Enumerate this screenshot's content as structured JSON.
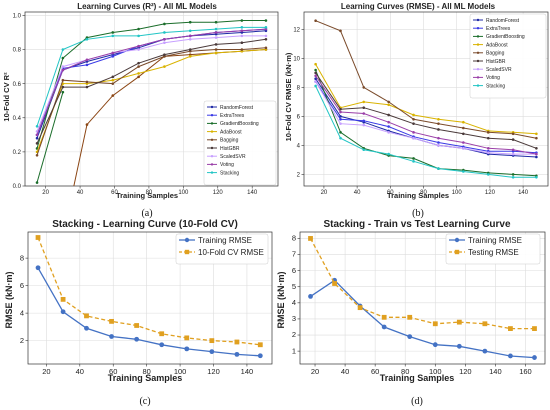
{
  "chart_data": [
    {
      "type": "line",
      "caption": "(a)",
      "title": "Learning Curves (R²) - All ML Models",
      "xlabel": "Training Samples",
      "ylabel": "10-Fold CV R²",
      "xlim": [
        8,
        155
      ],
      "ylim": [
        0.0,
        1.02
      ],
      "xticks": [
        20,
        40,
        60,
        80,
        100,
        120,
        140
      ],
      "yticks": [
        0.0,
        0.2,
        0.4,
        0.6,
        0.8,
        1.0
      ],
      "ytick_labels": [
        "0.0",
        "0.2",
        "0.4",
        "0.6",
        "0.8",
        "1.0"
      ],
      "grid": true,
      "legend_position": "lower right",
      "x": [
        15,
        30,
        44,
        59,
        74,
        89,
        104,
        119,
        134,
        148
      ],
      "series": [
        {
          "name": "RandomForest",
          "color": "#1f2aa6",
          "values": [
            0.28,
            0.68,
            0.73,
            0.77,
            0.81,
            0.86,
            0.88,
            0.89,
            0.9,
            0.91
          ]
        },
        {
          "name": "ExtraTrees",
          "color": "#3a3ae6",
          "values": [
            0.3,
            0.69,
            0.71,
            0.76,
            0.82,
            0.86,
            0.88,
            0.9,
            0.91,
            0.92
          ]
        },
        {
          "name": "GradientBoosting",
          "color": "#1a6d2a",
          "values": [
            0.22,
            0.75,
            0.87,
            0.9,
            0.92,
            0.95,
            0.96,
            0.96,
            0.97,
            0.97
          ]
        },
        {
          "name": "AdaBoost",
          "color": "#d9b300",
          "values": [
            0.2,
            0.6,
            0.6,
            0.62,
            0.66,
            0.7,
            0.76,
            0.78,
            0.79,
            0.8
          ]
        },
        {
          "name": "Bagging",
          "color": "#7a4a2a",
          "values": [
            0.18,
            0.62,
            0.61,
            0.6,
            0.7,
            0.76,
            0.79,
            0.8,
            0.8,
            0.81
          ]
        },
        {
          "name": "HistGBR",
          "color": "#4a3a3a",
          "values": [
            0.25,
            0.58,
            0.58,
            0.64,
            0.72,
            0.77,
            0.8,
            0.83,
            0.84,
            0.86
          ]
        },
        {
          "name": "ScaledSVR",
          "color": "#c7a0ff",
          "values": [
            0.32,
            0.7,
            0.74,
            0.78,
            0.8,
            0.84,
            0.86,
            0.87,
            0.88,
            0.88
          ]
        },
        {
          "name": "Voting",
          "color": "#9a3fa8",
          "values": [
            0.3,
            0.68,
            0.74,
            0.78,
            0.82,
            0.86,
            0.88,
            0.9,
            0.91,
            0.92
          ]
        },
        {
          "name": "Stacking",
          "color": "#22c5c5",
          "values": [
            0.35,
            0.8,
            0.86,
            0.88,
            0.88,
            0.9,
            0.91,
            0.92,
            0.93,
            0.93
          ]
        }
      ],
      "extra_series": [
        {
          "name": "",
          "color": "#8b4513",
          "x": [
            30,
            44,
            59,
            74,
            89,
            104,
            119,
            134,
            148
          ],
          "values": [
            -0.3,
            0.36,
            0.53,
            0.64,
            0.76,
            0.77,
            0.78,
            0.79,
            0.8
          ]
        },
        {
          "name": "",
          "color": "#1a6d2a",
          "x": [
            15,
            30
          ],
          "values": [
            0.02,
            0.55
          ]
        }
      ]
    },
    {
      "type": "line",
      "caption": "(b)",
      "title": "Learning Curves (RMSE) - All ML Models",
      "xlabel": "Training Samples",
      "ylabel": "10-Fold CV RMSE (kN·m)",
      "xlim": [
        8,
        155
      ],
      "ylim": [
        1.2,
        13.2
      ],
      "xticks": [
        20,
        40,
        60,
        80,
        100,
        120,
        140
      ],
      "yticks": [
        2,
        4,
        6,
        8,
        10,
        12
      ],
      "grid": true,
      "legend_position": "upper right",
      "x": [
        15,
        30,
        44,
        59,
        74,
        89,
        104,
        119,
        134,
        148
      ],
      "series": [
        {
          "name": "RandomForest",
          "color": "#1f2aa6",
          "values": [
            8.6,
            6.0,
            5.6,
            5.0,
            4.5,
            4.0,
            3.8,
            3.4,
            3.3,
            3.2
          ]
        },
        {
          "name": "ExtraTrees",
          "color": "#3a3ae6",
          "values": [
            8.4,
            5.8,
            5.7,
            5.3,
            4.6,
            4.2,
            3.9,
            3.6,
            3.6,
            3.5
          ]
        },
        {
          "name": "GradientBoosting",
          "color": "#1a6d2a",
          "values": [
            9.2,
            4.9,
            3.8,
            3.3,
            3.1,
            2.4,
            2.3,
            2.1,
            2.0,
            1.9
          ]
        },
        {
          "name": "AdaBoost",
          "color": "#d9b300",
          "values": [
            9.6,
            6.6,
            7.0,
            6.8,
            6.1,
            5.8,
            5.6,
            5.0,
            4.9,
            4.8
          ]
        },
        {
          "name": "Bagging",
          "color": "#7a4a2a",
          "values": [
            12.6,
            11.9,
            8.0,
            7.0,
            5.8,
            5.5,
            5.2,
            4.9,
            4.8,
            4.5
          ]
        },
        {
          "name": "HistGBR",
          "color": "#4a3a3a",
          "values": [
            9.0,
            6.5,
            6.6,
            6.1,
            5.5,
            5.1,
            4.8,
            4.5,
            4.4,
            3.8
          ]
        },
        {
          "name": "ScaledSVR",
          "color": "#c7a0ff",
          "values": [
            8.4,
            5.5,
            5.4,
            4.9,
            4.5,
            4.0,
            3.8,
            3.5,
            3.4,
            3.4
          ]
        },
        {
          "name": "Voting",
          "color": "#9a3fa8",
          "values": [
            8.8,
            6.3,
            6.2,
            5.6,
            4.9,
            4.5,
            4.2,
            3.8,
            3.7,
            3.4
          ]
        },
        {
          "name": "Stacking",
          "color": "#22c5c5",
          "values": [
            8.1,
            4.5,
            3.7,
            3.4,
            2.9,
            2.4,
            2.2,
            2.0,
            1.8,
            1.8
          ]
        }
      ]
    },
    {
      "type": "line",
      "caption": "(c)",
      "title": "Stacking - Learning Curve (10-Fold CV)",
      "xlabel": "Training Samples",
      "ylabel": "RMSE (kN·m)",
      "xlim": [
        9,
        155
      ],
      "ylim": [
        0.3,
        9.9
      ],
      "xticks": [
        20,
        40,
        60,
        80,
        100,
        120,
        140
      ],
      "yticks": [
        2,
        4,
        6,
        8
      ],
      "grid": true,
      "legend_position": "upper right",
      "x": [
        15,
        30,
        44,
        59,
        74,
        89,
        104,
        119,
        134,
        148
      ],
      "series": [
        {
          "name": "Training RMSE",
          "color": "#4472c4",
          "marker": "circle",
          "dash": false,
          "values": [
            7.3,
            4.1,
            2.9,
            2.3,
            2.1,
            1.7,
            1.4,
            1.2,
            1.0,
            0.9
          ]
        },
        {
          "name": "10-Fold CV RMSE",
          "color": "#e0a020",
          "marker": "square",
          "dash": true,
          "values": [
            9.5,
            5.0,
            3.8,
            3.4,
            3.1,
            2.5,
            2.2,
            2.0,
            1.9,
            1.7
          ]
        }
      ]
    },
    {
      "type": "line",
      "caption": "(d)",
      "title": "Stacking - Train vs Test Learning Curve",
      "xlabel": "Training Samples",
      "ylabel": "RMSE (kN·m)",
      "xlim": [
        10,
        173
      ],
      "ylim": [
        0.2,
        8.4
      ],
      "xticks": [
        20,
        40,
        60,
        80,
        100,
        120,
        140,
        160
      ],
      "yticks": [
        1,
        2,
        3,
        4,
        5,
        6,
        7,
        8
      ],
      "grid": true,
      "legend_position": "upper right",
      "x": [
        17,
        33,
        50,
        66,
        83,
        100,
        116,
        133,
        150,
        166
      ],
      "series": [
        {
          "name": "Training RMSE",
          "color": "#4472c4",
          "marker": "circle",
          "dash": false,
          "values": [
            4.4,
            5.4,
            3.8,
            2.5,
            1.9,
            1.4,
            1.3,
            1.0,
            0.7,
            0.6
          ]
        },
        {
          "name": "Testing RMSE",
          "color": "#e0a020",
          "marker": "square",
          "dash": true,
          "values": [
            8.0,
            5.2,
            3.7,
            3.1,
            3.1,
            2.7,
            2.8,
            2.7,
            2.4,
            2.4
          ]
        }
      ]
    }
  ]
}
